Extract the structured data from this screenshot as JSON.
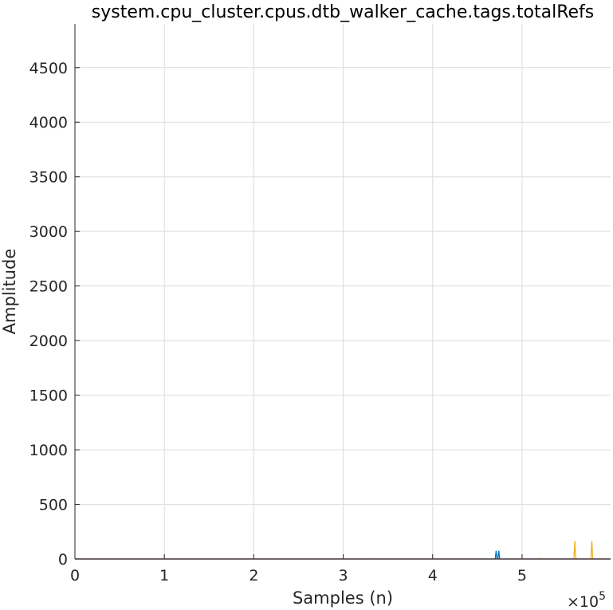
{
  "chart_data": {
    "type": "line",
    "title": "system.cpu_cluster.cpus.dtb_walker_cache.tags.totalRefs",
    "xlabel": "Samples (n)",
    "ylabel": "Amplitude",
    "x_multiplier_label": "×10",
    "x_multiplier_exponent": "5",
    "xlim": [
      0,
      599000
    ],
    "ylim": [
      0,
      4900
    ],
    "xticks": [
      0,
      100000,
      200000,
      300000,
      400000,
      500000
    ],
    "xtick_labels": [
      "0",
      "1",
      "2",
      "3",
      "4",
      "5"
    ],
    "yticks": [
      0,
      500,
      1000,
      1500,
      2000,
      2500,
      3000,
      3500,
      4000,
      4500
    ],
    "ytick_labels": [
      "0",
      "500",
      "1000",
      "1500",
      "2000",
      "2500",
      "3000",
      "3500",
      "4000",
      "4500"
    ],
    "grid": true,
    "series": [
      {
        "color": "#0072BD",
        "x": [
          0,
          470000,
          471000,
          472000,
          473000,
          474000,
          475000,
          476000,
          599000
        ],
        "y": [
          0,
          0,
          75,
          0,
          0,
          75,
          0,
          0,
          0
        ]
      },
      {
        "color": "#EDB120",
        "x": [
          0,
          328000,
          329000,
          330000,
          520000,
          521000,
          522000,
          558000,
          559000,
          560000,
          577000,
          578000,
          579000,
          599000
        ],
        "y": [
          0,
          0,
          5,
          0,
          0,
          8,
          0,
          0,
          165,
          0,
          0,
          165,
          0,
          0
        ]
      },
      {
        "color": "#7E2F8E",
        "x": [
          0,
          599000
        ],
        "y": [
          0,
          0
        ]
      }
    ]
  }
}
